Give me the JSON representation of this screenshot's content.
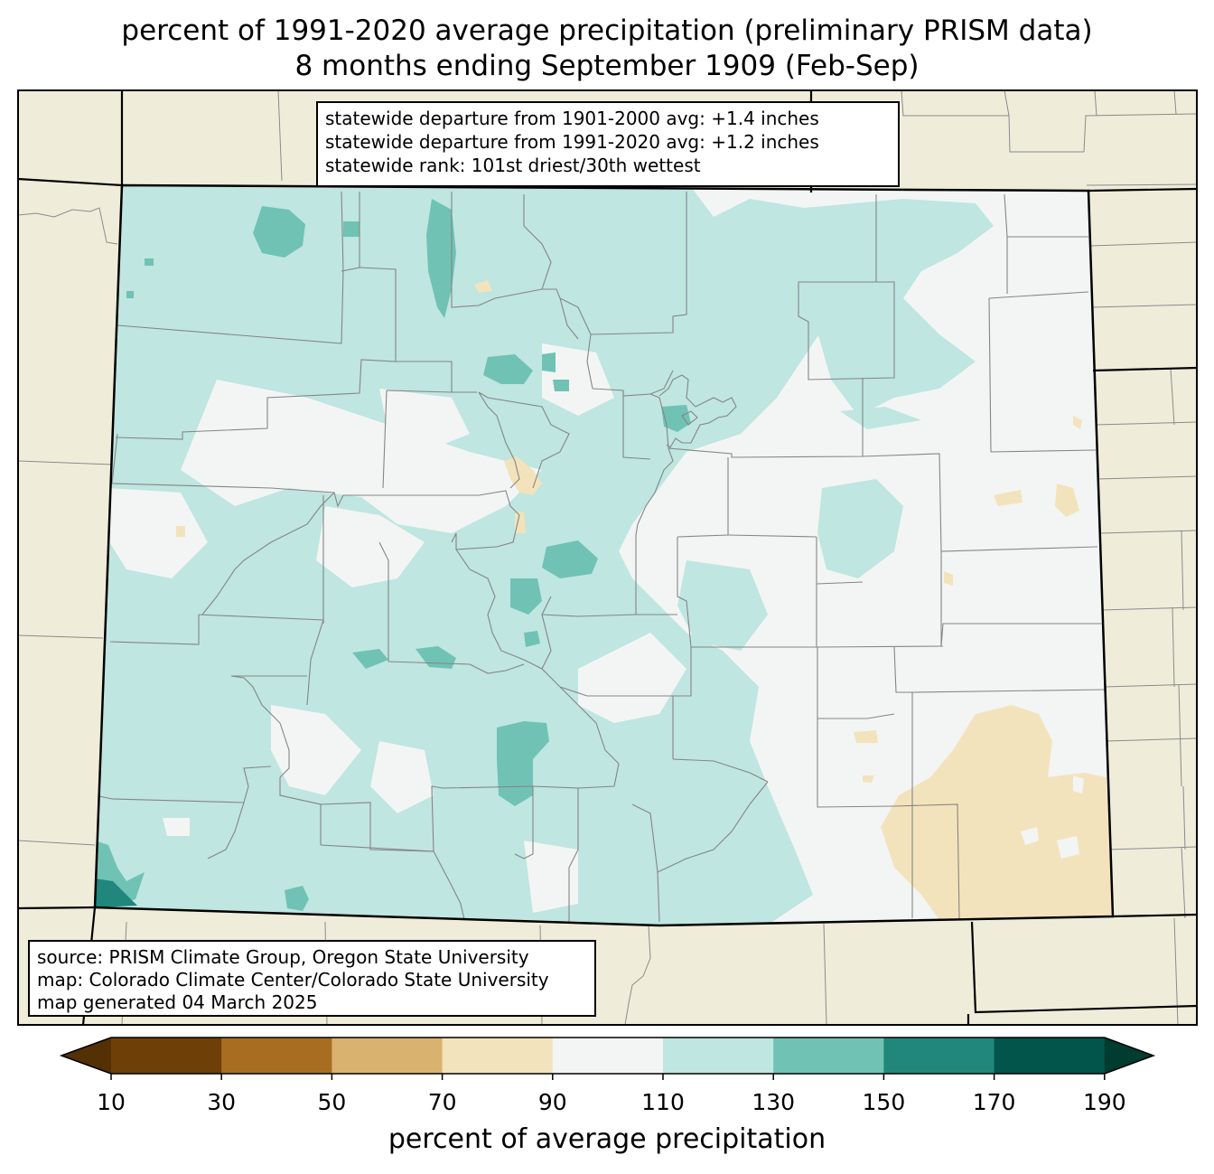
{
  "title": {
    "line1": "percent of 1991-2020 average precipitation (preliminary PRISM data)",
    "line2": "8 months ending September 1909 (Feb-Sep)"
  },
  "stats_box": {
    "line1": "statewide departure from 1901-2000 avg: +1.4 inches",
    "line2": "statewide departure from 1991-2020 avg: +1.2 inches",
    "line3": "statewide rank: 101st driest/30th wettest"
  },
  "source_box": {
    "line1": "source: PRISM Climate Group, Oregon State University",
    "line2": "map: Colorado Climate Center/Colorado State University",
    "line3": "map generated 04 March 2025"
  },
  "colorbar": {
    "title": "percent of average precipitation",
    "ticks": [
      "10",
      "30",
      "50",
      "70",
      "90",
      "110",
      "130",
      "150",
      "170",
      "190"
    ],
    "colors": [
      "#543005",
      "#6f3f08",
      "#a96d22",
      "#d8b26e",
      "#f3e3bc",
      "#f3f5f4",
      "#bfe6e0",
      "#70c2b5",
      "#21877c",
      "#01554a",
      "#003c30"
    ]
  },
  "map_colors": {
    "background": "#efedda",
    "pct_90_110": "#f3f5f4",
    "pct_110_130": "#bfe6e0",
    "pct_130_150": "#70c2b5",
    "pct_150_170": "#21877c",
    "pct_170_190": "#01554a",
    "pct_70_90": "#f3e3bc"
  }
}
